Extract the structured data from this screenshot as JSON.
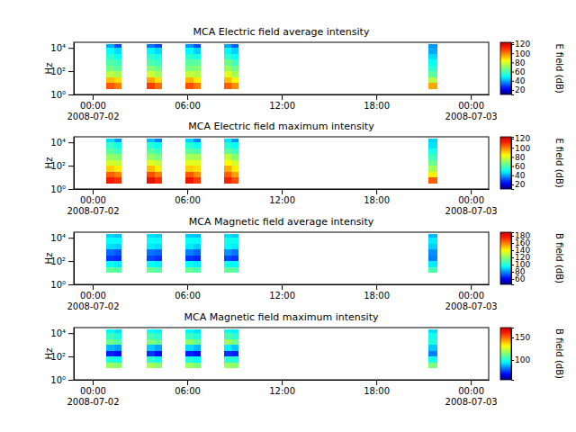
{
  "chart_data": [
    {
      "type": "heatmap",
      "title": "MCA  Electric field average intensity",
      "y_label": "Hz",
      "colorbar_label": "E field (dB)",
      "log": "y",
      "xlim": [
        "2008-07-01T22:48",
        "2008-07-03T01:08"
      ],
      "xticks": [
        {
          "value": "2008-07-02T00:00",
          "label": "00:00\n2008-07-02"
        },
        {
          "value": "2008-07-02T06:00",
          "label": "06:00"
        },
        {
          "value": "2008-07-02T12:00",
          "label": "12:00"
        },
        {
          "value": "2008-07-02T18:00",
          "label": "18:00"
        },
        {
          "value": "2008-07-03T00:00",
          "label": "00:00\n2008-07-03"
        }
      ],
      "ylim": [
        1,
        30000
      ],
      "yticks": [
        {
          "value": 1,
          "label": "10⁰"
        },
        {
          "value": 100,
          "label": "10²"
        },
        {
          "value": 10000,
          "label": "10⁴"
        }
      ],
      "x_bins": [
        [
          "2008-07-02T00:52",
          "2008-07-02T01:21"
        ],
        [
          "2008-07-02T01:21",
          "2008-07-02T01:50"
        ],
        [
          "2008-07-02T03:26",
          "2008-07-02T03:55"
        ],
        [
          "2008-07-02T03:55",
          "2008-07-02T04:24"
        ],
        [
          "2008-07-02T05:54",
          "2008-07-02T06:23"
        ],
        [
          "2008-07-02T06:23",
          "2008-07-02T06:52"
        ],
        [
          "2008-07-02T08:20",
          "2008-07-02T08:48"
        ],
        [
          "2008-07-02T08:48",
          "2008-07-02T09:16"
        ],
        [
          "2008-07-02T21:18",
          "2008-07-02T21:54"
        ]
      ],
      "y_bins": [
        3,
        10,
        30,
        100,
        300,
        1000,
        3000,
        10000,
        20000
      ],
      "cells": [
        [
          105,
          92,
          75,
          65,
          60,
          55,
          50,
          40
        ],
        [
          100,
          88,
          72,
          62,
          58,
          50,
          45,
          30
        ],
        [
          108,
          95,
          78,
          68,
          60,
          55,
          48,
          35
        ],
        [
          102,
          88,
          72,
          64,
          57,
          52,
          45,
          30
        ],
        [
          106,
          93,
          76,
          66,
          62,
          55,
          48,
          38
        ],
        [
          100,
          86,
          74,
          68,
          62,
          52,
          44,
          30
        ],
        [
          104,
          92,
          80,
          70,
          65,
          55,
          48,
          40
        ],
        [
          98,
          85,
          72,
          65,
          58,
          50,
          44,
          32
        ],
        [
          95,
          75,
          62,
          55,
          50,
          45,
          40,
          38
        ]
      ],
      "colorbar_lim": [
        10,
        124
      ],
      "colorbar_ticks": [
        20,
        40,
        60,
        80,
        100,
        120
      ]
    },
    {
      "type": "heatmap",
      "title": "MCA  Electric field maximum intensity",
      "y_label": "Hz",
      "colorbar_label": "E field (dB)",
      "log": "y",
      "xlim": [
        "2008-07-01T22:48",
        "2008-07-03T01:08"
      ],
      "xticks": [
        {
          "value": "2008-07-02T00:00",
          "label": "00:00\n2008-07-02"
        },
        {
          "value": "2008-07-02T06:00",
          "label": "06:00"
        },
        {
          "value": "2008-07-02T12:00",
          "label": "12:00"
        },
        {
          "value": "2008-07-02T18:00",
          "label": "18:00"
        },
        {
          "value": "2008-07-03T00:00",
          "label": "00:00\n2008-07-03"
        }
      ],
      "ylim": [
        1,
        30000
      ],
      "yticks": [
        {
          "value": 1,
          "label": "10⁰"
        },
        {
          "value": 100,
          "label": "10²"
        },
        {
          "value": 10000,
          "label": "10⁴"
        }
      ],
      "x_bins": [
        [
          "2008-07-02T00:52",
          "2008-07-02T01:21"
        ],
        [
          "2008-07-02T01:21",
          "2008-07-02T01:50"
        ],
        [
          "2008-07-02T03:26",
          "2008-07-02T03:55"
        ],
        [
          "2008-07-02T03:55",
          "2008-07-02T04:24"
        ],
        [
          "2008-07-02T05:54",
          "2008-07-02T06:23"
        ],
        [
          "2008-07-02T06:23",
          "2008-07-02T06:52"
        ],
        [
          "2008-07-02T08:20",
          "2008-07-02T08:48"
        ],
        [
          "2008-07-02T08:48",
          "2008-07-02T09:16"
        ],
        [
          "2008-07-02T21:18",
          "2008-07-02T21:54"
        ]
      ],
      "y_bins": [
        3,
        10,
        30,
        100,
        300,
        1000,
        3000,
        10000,
        20000
      ],
      "cells": [
        [
          114,
          104,
          90,
          78,
          70,
          62,
          56,
          45
        ],
        [
          110,
          100,
          86,
          76,
          68,
          58,
          52,
          38
        ],
        [
          116,
          106,
          92,
          80,
          70,
          62,
          54,
          42
        ],
        [
          110,
          100,
          86,
          76,
          66,
          58,
          50,
          36
        ],
        [
          115,
          105,
          90,
          80,
          72,
          62,
          54,
          44
        ],
        [
          108,
          98,
          88,
          80,
          72,
          60,
          50,
          36
        ],
        [
          112,
          104,
          94,
          84,
          76,
          62,
          54,
          46
        ],
        [
          106,
          96,
          86,
          78,
          68,
          58,
          50,
          38
        ],
        [
          104,
          86,
          72,
          64,
          58,
          52,
          46,
          44
        ]
      ],
      "colorbar_lim": [
        10,
        124
      ],
      "colorbar_ticks": [
        20,
        40,
        60,
        80,
        100,
        120
      ]
    },
    {
      "type": "heatmap",
      "title": "MCA  Magnetic field average intensity",
      "y_label": "Hz",
      "colorbar_label": "B field (dB)",
      "log": "y",
      "xlim": [
        "2008-07-01T22:48",
        "2008-07-03T01:08"
      ],
      "xticks": [
        {
          "value": "2008-07-02T00:00",
          "label": "00:00\n2008-07-02"
        },
        {
          "value": "2008-07-02T06:00",
          "label": "06:00"
        },
        {
          "value": "2008-07-02T12:00",
          "label": "12:00"
        },
        {
          "value": "2008-07-02T18:00",
          "label": "18:00"
        },
        {
          "value": "2008-07-03T00:00",
          "label": "00:00\n2008-07-03"
        }
      ],
      "ylim": [
        1,
        30000
      ],
      "yticks": [
        {
          "value": 1,
          "label": "10⁰"
        },
        {
          "value": 100,
          "label": "10²"
        },
        {
          "value": 10000,
          "label": "10⁴"
        }
      ],
      "x_bins": [
        [
          "2008-07-02T00:52",
          "2008-07-02T01:21"
        ],
        [
          "2008-07-02T01:21",
          "2008-07-02T01:50"
        ],
        [
          "2008-07-02T03:26",
          "2008-07-02T03:55"
        ],
        [
          "2008-07-02T03:55",
          "2008-07-02T04:24"
        ],
        [
          "2008-07-02T05:54",
          "2008-07-02T06:23"
        ],
        [
          "2008-07-02T06:23",
          "2008-07-02T06:52"
        ],
        [
          "2008-07-02T08:20",
          "2008-07-02T08:48"
        ],
        [
          "2008-07-02T08:48",
          "2008-07-02T09:16"
        ],
        [
          "2008-07-02T21:18",
          "2008-07-02T21:54"
        ]
      ],
      "y_bins": [
        3,
        10,
        30,
        100,
        300,
        1000,
        3000,
        10000,
        20000
      ],
      "cells": [
        [
          null,
          112,
          95,
          68,
          75,
          90,
          95,
          88
        ],
        [
          null,
          110,
          92,
          66,
          72,
          88,
          94,
          86
        ],
        [
          null,
          113,
          96,
          70,
          76,
          92,
          96,
          90
        ],
        [
          null,
          110,
          93,
          67,
          74,
          90,
          95,
          88
        ],
        [
          null,
          112,
          95,
          68,
          78,
          92,
          96,
          88
        ],
        [
          null,
          108,
          92,
          66,
          74,
          88,
          94,
          86
        ],
        [
          null,
          112,
          96,
          70,
          80,
          94,
          98,
          90
        ],
        [
          null,
          110,
          94,
          68,
          76,
          92,
          96,
          88
        ],
        [
          null,
          108,
          92,
          78,
          80,
          88,
          92,
          85
        ]
      ],
      "colorbar_lim": [
        45,
        190
      ],
      "colorbar_ticks": [
        60,
        80,
        100,
        120,
        140,
        160,
        180
      ]
    },
    {
      "type": "heatmap",
      "title": "MCA  Magnetic field maximum intensity",
      "y_label": "Hz",
      "colorbar_label": "B field (dB)",
      "log": "y",
      "xlim": [
        "2008-07-01T22:48",
        "2008-07-03T01:08"
      ],
      "xticks": [
        {
          "value": "2008-07-02T00:00",
          "label": "00:00\n2008-07-02"
        },
        {
          "value": "2008-07-02T06:00",
          "label": "06:00"
        },
        {
          "value": "2008-07-02T12:00",
          "label": "12:00"
        },
        {
          "value": "2008-07-02T18:00",
          "label": "18:00"
        },
        {
          "value": "2008-07-03T00:00",
          "label": "00:00\n2008-07-03"
        }
      ],
      "ylim": [
        1,
        30000
      ],
      "yticks": [
        {
          "value": 1,
          "label": "10⁰"
        },
        {
          "value": 100,
          "label": "10²"
        },
        {
          "value": 10000,
          "label": "10⁴"
        }
      ],
      "x_bins": [
        [
          "2008-07-02T00:52",
          "2008-07-02T01:21"
        ],
        [
          "2008-07-02T01:21",
          "2008-07-02T01:50"
        ],
        [
          "2008-07-02T03:26",
          "2008-07-02T03:55"
        ],
        [
          "2008-07-02T03:55",
          "2008-07-02T04:24"
        ],
        [
          "2008-07-02T05:54",
          "2008-07-02T06:23"
        ],
        [
          "2008-07-02T06:23",
          "2008-07-02T06:52"
        ],
        [
          "2008-07-02T08:20",
          "2008-07-02T08:48"
        ],
        [
          "2008-07-02T08:48",
          "2008-07-02T09:16"
        ],
        [
          "2008-07-02T21:18",
          "2008-07-02T21:54"
        ]
      ],
      "y_bins": [
        3,
        10,
        30,
        100,
        300,
        1000,
        3000,
        10000,
        20000
      ],
      "cells": [
        [
          null,
          118,
          100,
          72,
          88,
          112,
          104,
          95
        ],
        [
          null,
          116,
          98,
          70,
          85,
          108,
          100,
          92
        ],
        [
          null,
          120,
          102,
          74,
          90,
          114,
          106,
          96
        ],
        [
          null,
          116,
          98,
          70,
          86,
          110,
          102,
          94
        ],
        [
          null,
          118,
          100,
          72,
          92,
          116,
          104,
          95
        ],
        [
          null,
          114,
          96,
          70,
          88,
          110,
          100,
          92
        ],
        [
          null,
          118,
          102,
          74,
          94,
          118,
          106,
          96
        ],
        [
          null,
          116,
          100,
          72,
          90,
          112,
          102,
          94
        ],
        [
          null,
          114,
          98,
          82,
          90,
          100,
          98,
          92
        ]
      ],
      "colorbar_lim": [
        56,
        172
      ],
      "colorbar_ticks": [
        100,
        150
      ]
    }
  ]
}
